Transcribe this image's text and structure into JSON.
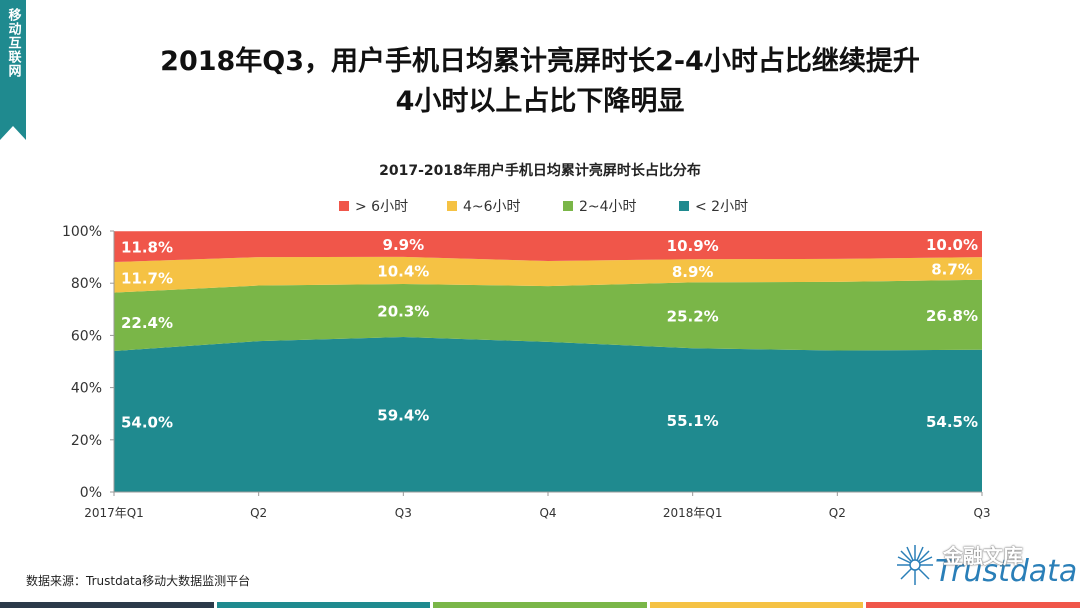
{
  "side_tab": {
    "label": "移动互联网"
  },
  "headline": {
    "line1": "2018年Q3，用户手机日均累计亮屏时长2-4小时占比继续提升",
    "line2": "4小时以上占比下降明显"
  },
  "chart_data": {
    "type": "area",
    "stacked": true,
    "percent": true,
    "title": "2017-2018年用户手机日均累计亮屏时长占比分布",
    "categories": [
      "2017年Q1",
      "Q2",
      "Q3",
      "Q4",
      "2018年Q1",
      "Q2",
      "Q3"
    ],
    "ylim": [
      0,
      100
    ],
    "yticks": [
      "0%",
      "20%",
      "40%",
      "60%",
      "80%",
      "100%"
    ],
    "legend_position": "top",
    "series": [
      {
        "name": "< 2小时",
        "color": "#1f8a8f",
        "values": [
          54.0,
          57.8,
          59.4,
          57.5,
          55.1,
          54.2,
          54.5
        ]
      },
      {
        "name": "2~4小时",
        "color": "#7ab648",
        "values": [
          22.4,
          21.3,
          20.3,
          21.4,
          25.2,
          26.3,
          26.8
        ]
      },
      {
        "name": "4~6小时",
        "color": "#f5c244",
        "values": [
          11.7,
          10.9,
          10.4,
          9.6,
          8.9,
          8.8,
          8.7
        ]
      },
      {
        "name": "> 6小时",
        "color": "#f0564a",
        "values": [
          11.8,
          10.0,
          9.9,
          11.5,
          10.9,
          10.7,
          10.0
        ]
      }
    ],
    "labels": [
      {
        "category": "2017年Q1",
        "values": [
          "54.0%",
          "22.4%",
          "11.7%",
          "11.8%"
        ]
      },
      {
        "category": "Q3",
        "values": [
          "59.4%",
          "20.3%",
          "10.4%",
          "9.9%"
        ]
      },
      {
        "category": "2018年Q1",
        "values": [
          "55.1%",
          "25.2%",
          "8.9%",
          "10.9%"
        ]
      },
      {
        "category": "Q3",
        "values": [
          "54.5%",
          "26.8%",
          "8.7%",
          "10.0%"
        ]
      }
    ]
  },
  "legend_order": [
    "> 6小时",
    "4~6小时",
    "2~4小时",
    "< 2小时"
  ],
  "source": "数据来源：Trustdata移动大数据监测平台",
  "logo": {
    "brand": "金融文库",
    "name": "Trustdata"
  },
  "bottom_bar_colors": [
    "#2b3a4a",
    "#1f8a8f",
    "#7ab648",
    "#f5c244",
    "#f0564a"
  ]
}
